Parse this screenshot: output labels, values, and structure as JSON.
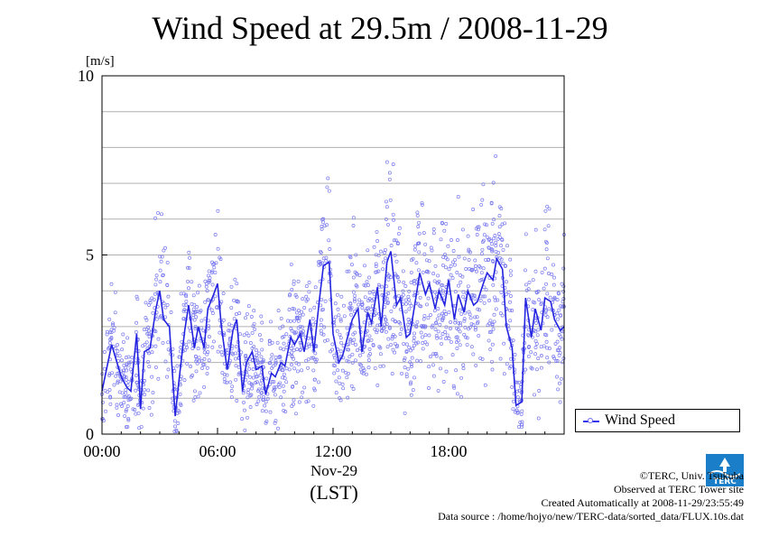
{
  "chart_data": {
    "type": "line",
    "title": "Wind Speed at 29.5m / 2008-11-29",
    "ylabel": "[m/s]",
    "xlabel_date": "Nov-29",
    "xlabel_unit": "(LST)",
    "xlim_hours": [
      0,
      24
    ],
    "ylim": [
      0,
      10
    ],
    "yticks": [
      0,
      5,
      10
    ],
    "xticks": [
      "00:00",
      "06:00",
      "12:00",
      "18:00"
    ],
    "grid": true,
    "legend_position": "right",
    "series": [
      {
        "name": "Wind Speed",
        "style": "line with scattered 10s samples",
        "x_hours": [
          0.0,
          0.5,
          1.0,
          1.3,
          1.5,
          1.8,
          2.0,
          2.2,
          2.5,
          2.8,
          3.0,
          3.2,
          3.5,
          3.8,
          4.0,
          4.3,
          4.5,
          4.8,
          5.0,
          5.3,
          5.5,
          5.8,
          6.0,
          6.2,
          6.5,
          6.8,
          7.0,
          7.3,
          7.5,
          7.8,
          8.0,
          8.3,
          8.5,
          8.8,
          9.0,
          9.3,
          9.5,
          9.8,
          10.0,
          10.3,
          10.5,
          10.8,
          11.0,
          11.3,
          11.5,
          11.8,
          12.0,
          12.3,
          12.5,
          12.8,
          13.0,
          13.3,
          13.5,
          13.8,
          14.0,
          14.3,
          14.5,
          14.8,
          15.0,
          15.3,
          15.5,
          15.8,
          16.0,
          16.3,
          16.5,
          16.8,
          17.0,
          17.3,
          17.5,
          17.8,
          18.0,
          18.3,
          18.5,
          18.8,
          19.0,
          19.3,
          19.5,
          19.8,
          20.0,
          20.3,
          20.5,
          20.8,
          21.0,
          21.3,
          21.5,
          21.8,
          22.0,
          22.3,
          22.5,
          22.8,
          23.0,
          23.3,
          23.5,
          23.8,
          24.0
        ],
        "values": [
          1.2,
          2.5,
          1.6,
          1.3,
          1.2,
          2.8,
          0.7,
          2.3,
          2.4,
          3.5,
          4.0,
          3.2,
          3.0,
          0.5,
          1.5,
          2.9,
          3.6,
          2.4,
          3.0,
          2.4,
          3.5,
          3.9,
          4.2,
          3.0,
          1.8,
          2.9,
          3.2,
          1.2,
          2.0,
          2.3,
          1.8,
          1.9,
          1.1,
          1.7,
          1.6,
          2.0,
          1.9,
          2.7,
          2.5,
          2.8,
          2.3,
          3.2,
          2.3,
          3.8,
          4.7,
          4.8,
          2.8,
          2.0,
          2.2,
          2.8,
          3.2,
          3.5,
          2.3,
          3.4,
          3.1,
          4.1,
          3.0,
          4.8,
          5.1,
          3.6,
          3.8,
          2.7,
          2.8,
          3.8,
          4.5,
          3.9,
          4.2,
          3.5,
          4.0,
          3.6,
          4.3,
          3.2,
          3.9,
          3.4,
          4.0,
          3.6,
          3.7,
          4.2,
          4.5,
          4.3,
          4.9,
          4.6,
          3.0,
          2.4,
          0.8,
          0.9,
          3.8,
          2.7,
          3.5,
          2.9,
          3.8,
          3.7,
          3.2,
          2.9,
          3.0
        ]
      }
    ]
  },
  "credits": {
    "copyright": "©TERC, Univ. Tsukuba",
    "observed": "Observed at TERC Tower site",
    "created": "Created Automatically at 2008-11-29/23:55:49",
    "source": "Data source : /home/hojyo/new/TERC-data/sorted_data/FLUX.10s.dat"
  },
  "logo_text": "TERC",
  "colors": {
    "line": "#2424e0",
    "scatter": "#7a7af0",
    "grid": "#b0b0b0"
  }
}
